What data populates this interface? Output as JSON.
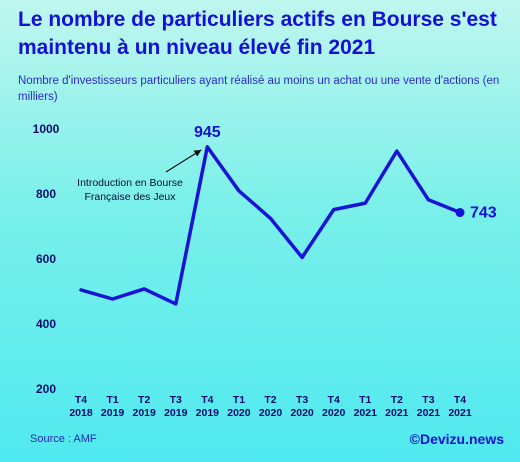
{
  "header": {
    "title": "Le nombre de particuliers actifs en Bourse s'est maintenu à un niveau élevé fin 2021",
    "subtitle": "Nombre d'investisseurs particuliers ayant réalisé au moins un achat ou une vente d'actions (en milliers)"
  },
  "footer": {
    "source": "Source : AMF",
    "brand": "©Devizu.news"
  },
  "colors": {
    "line": "#1a12d6",
    "title": "#1510d6"
  },
  "chart_data": {
    "type": "line",
    "categories": [
      [
        "T4",
        "2018"
      ],
      [
        "T1",
        "2019"
      ],
      [
        "T2",
        "2019"
      ],
      [
        "T3",
        "2019"
      ],
      [
        "T4",
        "2019"
      ],
      [
        "T1",
        "2020"
      ],
      [
        "T2",
        "2020"
      ],
      [
        "T3",
        "2020"
      ],
      [
        "T4",
        "2020"
      ],
      [
        "T1",
        "2021"
      ],
      [
        "T2",
        "2021"
      ],
      [
        "T3",
        "2021"
      ],
      [
        "T4",
        "2021"
      ]
    ],
    "series": [
      {
        "values": [
          505,
          477,
          508,
          462,
          945,
          810,
          725,
          605,
          752,
          772,
          932,
          782,
          743
        ]
      }
    ],
    "ylim": [
      200,
      1000
    ],
    "yticks": [
      200,
      400,
      600,
      800,
      1000
    ],
    "grid": false,
    "data_labels": [
      {
        "index": 4,
        "text": "945"
      },
      {
        "index": 12,
        "text": "743"
      }
    ],
    "annotation": {
      "lines": [
        "Introduction en Bourse",
        "Française des Jeux"
      ],
      "target_index": 4
    }
  }
}
